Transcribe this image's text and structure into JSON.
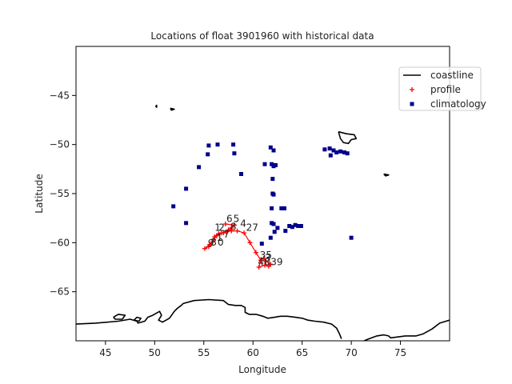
{
  "chart_data": {
    "type": "scatter",
    "title": "Locations of float 3901960 with historical data",
    "xlabel": "Longitude",
    "ylabel": "Latitude",
    "xlim": [
      42,
      80
    ],
    "ylim": [
      -70,
      -40
    ],
    "xticks": [
      45,
      50,
      55,
      60,
      65,
      70,
      75
    ],
    "yticks": [
      -45,
      -50,
      -55,
      -60,
      -65
    ],
    "grid": false,
    "legend_position": "top-right",
    "legend": [
      {
        "label": "coastline",
        "kind": "line",
        "color": "#000000"
      },
      {
        "label": "profile",
        "kind": "plus",
        "color": "#ff0000"
      },
      {
        "label": "climatology",
        "kind": "square",
        "color": "#00008b"
      }
    ],
    "series": [
      {
        "name": "coastline",
        "kind": "coastline",
        "color": "#000000",
        "segments": [
          [
            [
              42,
              -68.3
            ],
            [
              44,
              -68.2
            ],
            [
              46.3,
              -68.0
            ],
            [
              47.5,
              -67.8
            ],
            [
              48.2,
              -68.0
            ],
            [
              48.3,
              -68.2
            ],
            [
              49.0,
              -68.0
            ],
            [
              49.3,
              -67.6
            ],
            [
              49.8,
              -67.4
            ],
            [
              50.5,
              -67.0
            ],
            [
              50.7,
              -67.4
            ],
            [
              50.4,
              -67.9
            ],
            [
              50.8,
              -68.1
            ],
            [
              51.5,
              -67.7
            ],
            [
              52.0,
              -67.0
            ],
            [
              52.3,
              -66.7
            ],
            [
              52.7,
              -66.4
            ],
            [
              52.9,
              -66.2
            ],
            [
              54.0,
              -65.9
            ],
            [
              55.5,
              -65.8
            ],
            [
              57.0,
              -65.9
            ],
            [
              57.5,
              -66.3
            ],
            [
              58.2,
              -66.4
            ],
            [
              58.8,
              -66.4
            ],
            [
              59.2,
              -66.6
            ],
            [
              59.2,
              -67.1
            ],
            [
              59.6,
              -67.3
            ],
            [
              60.3,
              -67.3
            ],
            [
              61.0,
              -67.5
            ],
            [
              61.5,
              -67.7
            ],
            [
              62.2,
              -67.6
            ],
            [
              62.8,
              -67.5
            ],
            [
              63.5,
              -67.5
            ],
            [
              64.3,
              -67.6
            ],
            [
              65.0,
              -67.7
            ],
            [
              65.6,
              -67.9
            ],
            [
              66.3,
              -68.0
            ],
            [
              67.2,
              -68.1
            ],
            [
              68.0,
              -68.3
            ],
            [
              68.5,
              -68.7
            ],
            [
              68.8,
              -69.3
            ],
            [
              69.0,
              -69.8
            ]
          ],
          [
            [
              45.8,
              -67.6
            ],
            [
              46.3,
              -67.3
            ],
            [
              47.0,
              -67.4
            ],
            [
              46.7,
              -67.8
            ],
            [
              46.0,
              -67.8
            ],
            [
              45.8,
              -67.6
            ]
          ],
          [
            [
              47.9,
              -67.9
            ],
            [
              48.2,
              -67.6
            ],
            [
              48.6,
              -67.7
            ],
            [
              48.4,
              -68.0
            ],
            [
              47.9,
              -67.9
            ]
          ],
          [
            [
              71.3,
              -70
            ],
            [
              71.8,
              -69.8
            ],
            [
              72.6,
              -69.5
            ],
            [
              73.3,
              -69.4
            ],
            [
              73.8,
              -69.5
            ],
            [
              74.0,
              -69.7
            ],
            [
              74.8,
              -69.6
            ],
            [
              75.5,
              -69.5
            ],
            [
              76.6,
              -69.5
            ],
            [
              77.3,
              -69.3
            ],
            [
              78.2,
              -68.8
            ],
            [
              79.0,
              -68.2
            ],
            [
              80,
              -67.9
            ]
          ],
          [
            [
              68.7,
              -48.7
            ],
            [
              69.5,
              -48.9
            ],
            [
              70.3,
              -49.0
            ],
            [
              70.5,
              -49.4
            ],
            [
              70.0,
              -49.5
            ],
            [
              69.7,
              -49.9
            ],
            [
              69.2,
              -49.8
            ],
            [
              68.9,
              -49.4
            ],
            [
              68.7,
              -48.7
            ]
          ],
          [
            [
              73.3,
              -53.0
            ],
            [
              73.8,
              -53.1
            ],
            [
              73.5,
              -53.2
            ],
            [
              73.3,
              -53.0
            ]
          ],
          [
            [
              50.1,
              -46.1
            ],
            [
              50.2,
              -46.0
            ],
            [
              50.2,
              -46.2
            ],
            [
              50.1,
              -46.1
            ]
          ],
          [
            [
              51.6,
              -46.3
            ],
            [
              52.0,
              -46.4
            ],
            [
              51.7,
              -46.5
            ],
            [
              51.6,
              -46.3
            ]
          ]
        ]
      },
      {
        "name": "profile",
        "kind": "profile",
        "color": "#ff0000",
        "points": [
          [
            57.2,
            -58.1
          ],
          [
            58.1,
            -58.2
          ],
          [
            57.8,
            -58.5
          ],
          [
            57.5,
            -58.7
          ],
          [
            57.0,
            -59.0
          ],
          [
            56.5,
            -59.1
          ],
          [
            56.1,
            -59.4
          ],
          [
            55.9,
            -59.9
          ],
          [
            55.5,
            -60.4
          ],
          [
            55.1,
            -60.6
          ],
          [
            55.6,
            -60.2
          ],
          [
            56.0,
            -59.7
          ],
          [
            56.3,
            -59.3
          ],
          [
            56.8,
            -59.0
          ],
          [
            57.3,
            -58.9
          ],
          [
            57.8,
            -58.8
          ],
          [
            58.4,
            -58.8
          ],
          [
            59.1,
            -59.0
          ],
          [
            59.7,
            -60.0
          ],
          [
            60.3,
            -61.0
          ],
          [
            60.8,
            -61.8
          ],
          [
            60.6,
            -62.5
          ],
          [
            61.2,
            -62.3
          ],
          [
            61.6,
            -62.4
          ],
          [
            61.8,
            -62.2
          ],
          [
            61.3,
            -61.9
          ],
          [
            61.1,
            -61.6
          ]
        ],
        "labels": [
          {
            "text": "6",
            "x": 57.3,
            "y": -57.9
          },
          {
            "text": "5",
            "x": 58.0,
            "y": -57.9
          },
          {
            "text": "1",
            "x": 56.1,
            "y": -58.8
          },
          {
            "text": "2",
            "x": 56.5,
            "y": -58.8
          },
          {
            "text": "8",
            "x": 57.7,
            "y": -58.7
          },
          {
            "text": "4",
            "x": 58.7,
            "y": -58.4
          },
          {
            "text": "27",
            "x": 59.3,
            "y": -58.8
          },
          {
            "text": "7",
            "x": 57.0,
            "y": -59.5
          },
          {
            "text": "1",
            "x": 56.3,
            "y": -59.8
          },
          {
            "text": "3",
            "x": 55.7,
            "y": -60.3
          },
          {
            "text": "9",
            "x": 55.4,
            "y": -60.4
          },
          {
            "text": "0",
            "x": 56.4,
            "y": -60.3
          },
          {
            "text": "35",
            "x": 60.7,
            "y": -61.6
          },
          {
            "text": "3",
            "x": 61.2,
            "y": -61.9
          },
          {
            "text": "40",
            "x": 60.5,
            "y": -62.3
          },
          {
            "text": "39",
            "x": 61.8,
            "y": -62.3
          }
        ]
      },
      {
        "name": "climatology",
        "kind": "climatology",
        "color": "#00008b",
        "points": [
          [
            55.5,
            -50.1
          ],
          [
            56.4,
            -50.0
          ],
          [
            55.4,
            -51.0
          ],
          [
            58.0,
            -50.0
          ],
          [
            58.1,
            -50.9
          ],
          [
            58.8,
            -53.0
          ],
          [
            54.5,
            -52.3
          ],
          [
            53.2,
            -54.5
          ],
          [
            51.9,
            -56.3
          ],
          [
            53.2,
            -58.0
          ],
          [
            61.8,
            -50.3
          ],
          [
            62.1,
            -50.6
          ],
          [
            61.2,
            -52.0
          ],
          [
            61.9,
            -52.0
          ],
          [
            62.1,
            -52.2
          ],
          [
            62.3,
            -52.1
          ],
          [
            62.0,
            -53.5
          ],
          [
            62.0,
            -55.0
          ],
          [
            62.1,
            -55.1
          ],
          [
            62.9,
            -56.5
          ],
          [
            63.2,
            -56.5
          ],
          [
            61.9,
            -56.5
          ],
          [
            61.9,
            -58.0
          ],
          [
            62.1,
            -58.1
          ],
          [
            62.2,
            -58.9
          ],
          [
            62.5,
            -58.5
          ],
          [
            61.8,
            -59.5
          ],
          [
            63.7,
            -58.3
          ],
          [
            64.0,
            -58.4
          ],
          [
            64.3,
            -58.2
          ],
          [
            64.6,
            -58.3
          ],
          [
            64.9,
            -58.3
          ],
          [
            63.3,
            -58.8
          ],
          [
            60.9,
            -60.1
          ],
          [
            67.3,
            -50.5
          ],
          [
            67.8,
            -50.4
          ],
          [
            68.2,
            -50.6
          ],
          [
            67.9,
            -51.1
          ],
          [
            68.5,
            -50.8
          ],
          [
            68.9,
            -50.7
          ],
          [
            69.3,
            -50.8
          ],
          [
            69.6,
            -50.9
          ],
          [
            70.0,
            -59.5
          ]
        ]
      }
    ]
  }
}
